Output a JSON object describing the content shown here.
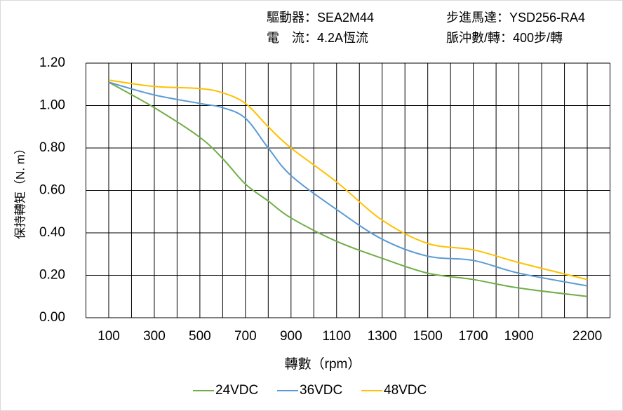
{
  "chart_data": {
    "type": "line",
    "info": [
      "驅動器：SEA2M44",
      "步進馬達：YSD256-RA4",
      "電　流：4.2A恆流",
      "脈沖數/轉：400步/轉"
    ],
    "x_label": "轉數（rpm）",
    "y_label": "保持轉矩（N. m）",
    "x": [
      100,
      300,
      500,
      600,
      700,
      800,
      900,
      1100,
      1300,
      1500,
      1700,
      1900,
      2200
    ],
    "series": [
      {
        "name": "24VDC",
        "color": "#70ad47",
        "values": [
          1.11,
          0.99,
          0.85,
          0.75,
          0.63,
          0.55,
          0.47,
          0.36,
          0.28,
          0.21,
          0.18,
          0.14,
          0.1
        ]
      },
      {
        "name": "36VDC",
        "color": "#5b9bd5",
        "values": [
          1.11,
          1.05,
          1.01,
          0.99,
          0.94,
          0.8,
          0.67,
          0.51,
          0.37,
          0.29,
          0.27,
          0.21,
          0.15
        ]
      },
      {
        "name": "48VDC",
        "color": "#ffc000",
        "values": [
          1.12,
          1.09,
          1.08,
          1.06,
          1.01,
          0.9,
          0.8,
          0.64,
          0.46,
          0.35,
          0.32,
          0.26,
          0.18
        ]
      }
    ],
    "xlim": [
      0,
      2300
    ],
    "xticks": [
      100,
      300,
      500,
      700,
      900,
      1100,
      1300,
      1500,
      1700,
      1900,
      2200
    ],
    "xgrid": [
      0,
      100,
      200,
      300,
      400,
      500,
      600,
      700,
      800,
      900,
      1000,
      1100,
      1200,
      1300,
      1400,
      1500,
      1600,
      1700,
      1800,
      1900,
      2000,
      2100,
      2200,
      2300
    ],
    "ylim": [
      0,
      1.2
    ],
    "yticks": [
      {
        "value": 0,
        "label": "0.00"
      },
      {
        "value": 0.2,
        "label": "0.20"
      },
      {
        "value": 0.4,
        "label": "0.40"
      },
      {
        "value": 0.6,
        "label": "0.60"
      },
      {
        "value": 0.8,
        "label": "0.80"
      },
      {
        "value": 1,
        "label": "1.00"
      },
      {
        "value": 1.2,
        "label": "1.20"
      }
    ],
    "grid": true,
    "legend": "bottom"
  }
}
